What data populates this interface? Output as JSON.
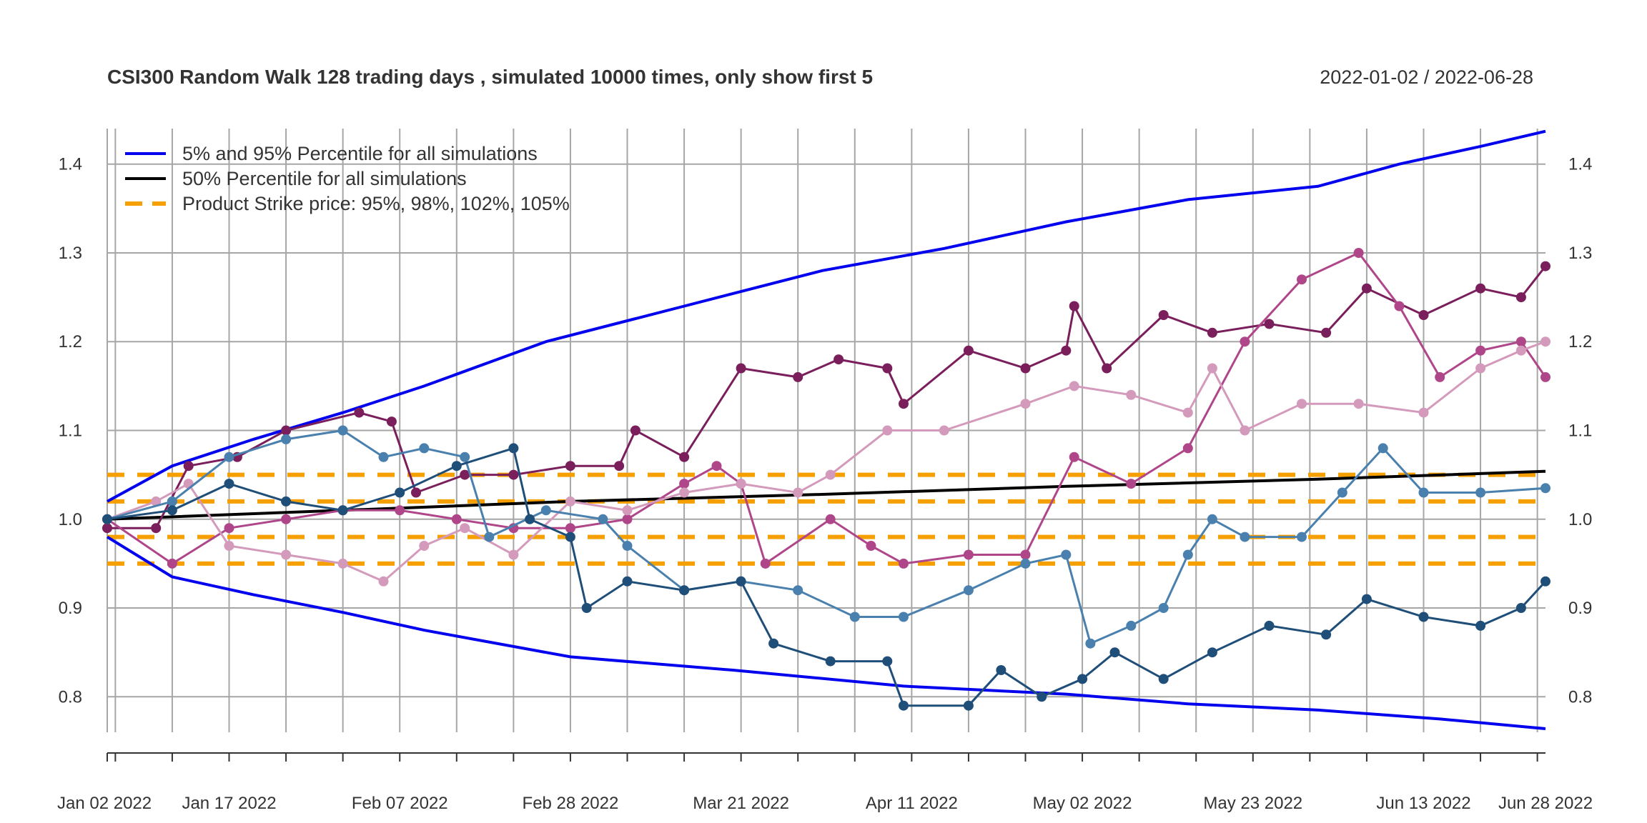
{
  "chart_data": {
    "type": "line",
    "title": "CSI300 Random Walk 128 trading days , simulated 10000 times, only show first 5",
    "date_range": "2022-01-02 / 2022-06-28",
    "ylim": [
      0.76,
      1.44
    ],
    "y_ticks": [
      0.8,
      0.9,
      1.0,
      1.1,
      1.2,
      1.3,
      1.4
    ],
    "y_tick_labels": [
      "0.8",
      "0.9",
      "1.0",
      "1.1",
      "1.2",
      "1.3",
      "1.4"
    ],
    "x_start": "2022-01-02",
    "x_end": "2022-06-28",
    "x_tick_dates": [
      "2022-01-02",
      "2022-01-17",
      "2022-02-07",
      "2022-02-28",
      "2022-03-21",
      "2022-04-11",
      "2022-05-02",
      "2022-05-23",
      "2022-06-13",
      "2022-06-28"
    ],
    "x_tick_labels": [
      "Jan 02 2022",
      "Jan 17 2022",
      "Feb 07 2022",
      "Feb 28 2022",
      "Mar 21 2022",
      "Apr 11 2022",
      "May 02 2022",
      "May 23 2022",
      "Jun 13 2022",
      "Jun 28 2022"
    ],
    "grid_dates": [
      "2022-01-02",
      "2022-01-03",
      "2022-01-10",
      "2022-01-17",
      "2022-01-24",
      "2022-01-31",
      "2022-02-07",
      "2022-02-14",
      "2022-02-21",
      "2022-02-28",
      "2022-03-07",
      "2022-03-14",
      "2022-03-21",
      "2022-03-28",
      "2022-04-04",
      "2022-04-11",
      "2022-04-18",
      "2022-04-25",
      "2022-05-02",
      "2022-05-09",
      "2022-05-16",
      "2022-05-23",
      "2022-05-30",
      "2022-06-06",
      "2022-06-13",
      "2022-06-20",
      "2022-06-27"
    ],
    "grid": true,
    "legend_position": "top-left",
    "legend": [
      {
        "label": "5% and 95% Percentile for all simulations",
        "color": "#0000ee",
        "style": "solid"
      },
      {
        "label": "50% Percentile for all simulations",
        "color": "#000000",
        "style": "solid"
      },
      {
        "label": "Product Strike price: 95%, 98%, 102%, 105%",
        "color": "#f5a000",
        "style": "dashed"
      }
    ],
    "strike_levels": [
      0.95,
      0.98,
      1.02,
      1.05
    ],
    "percentile_lines": [
      {
        "name": "95%",
        "color": "#0000ee",
        "points": [
          [
            "2022-01-02",
            1.02
          ],
          [
            "2022-01-10",
            1.06
          ],
          [
            "2022-01-20",
            1.09
          ],
          [
            "2022-01-31",
            1.12
          ],
          [
            "2022-02-10",
            1.15
          ],
          [
            "2022-02-25",
            1.2
          ],
          [
            "2022-03-14",
            1.24
          ],
          [
            "2022-03-31",
            1.28
          ],
          [
            "2022-04-15",
            1.305
          ],
          [
            "2022-04-30",
            1.335
          ],
          [
            "2022-05-15",
            1.36
          ],
          [
            "2022-05-31",
            1.375
          ],
          [
            "2022-06-10",
            1.4
          ],
          [
            "2022-06-20",
            1.42
          ],
          [
            "2022-06-28",
            1.437
          ]
        ]
      },
      {
        "name": "50%",
        "color": "#000000",
        "points": [
          [
            "2022-01-02",
            1.0
          ],
          [
            "2022-01-31",
            1.01
          ],
          [
            "2022-02-28",
            1.02
          ],
          [
            "2022-03-31",
            1.028
          ],
          [
            "2022-04-30",
            1.037
          ],
          [
            "2022-05-31",
            1.045
          ],
          [
            "2022-06-28",
            1.054
          ]
        ]
      },
      {
        "name": "5%",
        "color": "#0000ee",
        "points": [
          [
            "2022-01-02",
            0.98
          ],
          [
            "2022-01-10",
            0.935
          ],
          [
            "2022-01-20",
            0.915
          ],
          [
            "2022-01-31",
            0.895
          ],
          [
            "2022-02-10",
            0.875
          ],
          [
            "2022-02-28",
            0.845
          ],
          [
            "2022-03-20",
            0.83
          ],
          [
            "2022-04-10",
            0.812
          ],
          [
            "2022-04-30",
            0.803
          ],
          [
            "2022-05-15",
            0.792
          ],
          [
            "2022-05-31",
            0.785
          ],
          [
            "2022-06-15",
            0.775
          ],
          [
            "2022-06-28",
            0.764
          ]
        ]
      }
    ],
    "series": [
      {
        "color": "#7a1e5c",
        "points": [
          [
            "2022-01-02",
            0.99
          ],
          [
            "2022-01-08",
            0.99
          ],
          [
            "2022-01-12",
            1.06
          ],
          [
            "2022-01-18",
            1.07
          ],
          [
            "2022-01-24",
            1.1
          ],
          [
            "2022-02-02",
            1.12
          ],
          [
            "2022-02-06",
            1.11
          ],
          [
            "2022-02-09",
            1.03
          ],
          [
            "2022-02-15",
            1.05
          ],
          [
            "2022-02-21",
            1.05
          ],
          [
            "2022-02-28",
            1.06
          ],
          [
            "2022-03-06",
            1.06
          ],
          [
            "2022-03-08",
            1.1
          ],
          [
            "2022-03-14",
            1.07
          ],
          [
            "2022-03-21",
            1.17
          ],
          [
            "2022-03-28",
            1.16
          ],
          [
            "2022-04-02",
            1.18
          ],
          [
            "2022-04-08",
            1.17
          ],
          [
            "2022-04-10",
            1.13
          ],
          [
            "2022-04-18",
            1.19
          ],
          [
            "2022-04-25",
            1.17
          ],
          [
            "2022-04-30",
            1.19
          ],
          [
            "2022-05-01",
            1.24
          ],
          [
            "2022-05-05",
            1.17
          ],
          [
            "2022-05-12",
            1.23
          ],
          [
            "2022-05-18",
            1.21
          ],
          [
            "2022-05-25",
            1.22
          ],
          [
            "2022-06-01",
            1.21
          ],
          [
            "2022-06-06",
            1.26
          ],
          [
            "2022-06-13",
            1.23
          ],
          [
            "2022-06-20",
            1.26
          ],
          [
            "2022-06-25",
            1.25
          ],
          [
            "2022-06-28",
            1.285
          ]
        ]
      },
      {
        "color": "#b0468a",
        "points": [
          [
            "2022-01-02",
            1.0
          ],
          [
            "2022-01-10",
            0.95
          ],
          [
            "2022-01-17",
            0.99
          ],
          [
            "2022-01-24",
            1.0
          ],
          [
            "2022-01-31",
            1.01
          ],
          [
            "2022-02-07",
            1.01
          ],
          [
            "2022-02-14",
            1.0
          ],
          [
            "2022-02-21",
            0.99
          ],
          [
            "2022-02-28",
            0.99
          ],
          [
            "2022-03-07",
            1.0
          ],
          [
            "2022-03-14",
            1.04
          ],
          [
            "2022-03-18",
            1.06
          ],
          [
            "2022-03-21",
            1.04
          ],
          [
            "2022-03-24",
            0.95
          ],
          [
            "2022-04-01",
            1.0
          ],
          [
            "2022-04-06",
            0.97
          ],
          [
            "2022-04-10",
            0.95
          ],
          [
            "2022-04-18",
            0.96
          ],
          [
            "2022-04-25",
            0.96
          ],
          [
            "2022-05-01",
            1.07
          ],
          [
            "2022-05-08",
            1.04
          ],
          [
            "2022-05-15",
            1.08
          ],
          [
            "2022-05-22",
            1.2
          ],
          [
            "2022-05-29",
            1.27
          ],
          [
            "2022-06-05",
            1.3
          ],
          [
            "2022-06-10",
            1.24
          ],
          [
            "2022-06-15",
            1.16
          ],
          [
            "2022-06-20",
            1.19
          ],
          [
            "2022-06-25",
            1.2
          ],
          [
            "2022-06-28",
            1.16
          ]
        ]
      },
      {
        "color": "#d49abb",
        "points": [
          [
            "2022-01-02",
            1.0
          ],
          [
            "2022-01-08",
            1.02
          ],
          [
            "2022-01-12",
            1.04
          ],
          [
            "2022-01-17",
            0.97
          ],
          [
            "2022-01-24",
            0.96
          ],
          [
            "2022-01-31",
            0.95
          ],
          [
            "2022-02-05",
            0.93
          ],
          [
            "2022-02-10",
            0.97
          ],
          [
            "2022-02-15",
            0.99
          ],
          [
            "2022-02-21",
            0.96
          ],
          [
            "2022-02-28",
            1.02
          ],
          [
            "2022-03-07",
            1.01
          ],
          [
            "2022-03-14",
            1.03
          ],
          [
            "2022-03-21",
            1.04
          ],
          [
            "2022-03-28",
            1.03
          ],
          [
            "2022-04-01",
            1.05
          ],
          [
            "2022-04-08",
            1.1
          ],
          [
            "2022-04-15",
            1.1
          ],
          [
            "2022-04-25",
            1.13
          ],
          [
            "2022-05-01",
            1.15
          ],
          [
            "2022-05-08",
            1.14
          ],
          [
            "2022-05-15",
            1.12
          ],
          [
            "2022-05-18",
            1.17
          ],
          [
            "2022-05-22",
            1.1
          ],
          [
            "2022-05-29",
            1.13
          ],
          [
            "2022-06-05",
            1.13
          ],
          [
            "2022-06-13",
            1.12
          ],
          [
            "2022-06-20",
            1.17
          ],
          [
            "2022-06-25",
            1.19
          ],
          [
            "2022-06-28",
            1.2
          ]
        ]
      },
      {
        "color": "#4a80ae",
        "points": [
          [
            "2022-01-02",
            1.0
          ],
          [
            "2022-01-10",
            1.02
          ],
          [
            "2022-01-17",
            1.07
          ],
          [
            "2022-01-24",
            1.09
          ],
          [
            "2022-01-31",
            1.1
          ],
          [
            "2022-02-05",
            1.07
          ],
          [
            "2022-02-10",
            1.08
          ],
          [
            "2022-02-15",
            1.07
          ],
          [
            "2022-02-18",
            0.98
          ],
          [
            "2022-02-25",
            1.01
          ],
          [
            "2022-03-04",
            1.0
          ],
          [
            "2022-03-07",
            0.97
          ],
          [
            "2022-03-14",
            0.92
          ],
          [
            "2022-03-21",
            0.93
          ],
          [
            "2022-03-28",
            0.92
          ],
          [
            "2022-04-04",
            0.89
          ],
          [
            "2022-04-10",
            0.89
          ],
          [
            "2022-04-18",
            0.92
          ],
          [
            "2022-04-25",
            0.95
          ],
          [
            "2022-04-30",
            0.96
          ],
          [
            "2022-05-03",
            0.86
          ],
          [
            "2022-05-08",
            0.88
          ],
          [
            "2022-05-12",
            0.9
          ],
          [
            "2022-05-15",
            0.96
          ],
          [
            "2022-05-18",
            1.0
          ],
          [
            "2022-05-22",
            0.98
          ],
          [
            "2022-05-29",
            0.98
          ],
          [
            "2022-06-03",
            1.03
          ],
          [
            "2022-06-08",
            1.08
          ],
          [
            "2022-06-13",
            1.03
          ],
          [
            "2022-06-20",
            1.03
          ],
          [
            "2022-06-28",
            1.035
          ]
        ]
      },
      {
        "color": "#1f4e79",
        "points": [
          [
            "2022-01-02",
            1.0
          ],
          [
            "2022-01-10",
            1.01
          ],
          [
            "2022-01-17",
            1.04
          ],
          [
            "2022-01-24",
            1.02
          ],
          [
            "2022-01-31",
            1.01
          ],
          [
            "2022-02-07",
            1.03
          ],
          [
            "2022-02-14",
            1.06
          ],
          [
            "2022-02-21",
            1.08
          ],
          [
            "2022-02-23",
            1.0
          ],
          [
            "2022-02-28",
            0.98
          ],
          [
            "2022-03-02",
            0.9
          ],
          [
            "2022-03-07",
            0.93
          ],
          [
            "2022-03-14",
            0.92
          ],
          [
            "2022-03-21",
            0.93
          ],
          [
            "2022-03-25",
            0.86
          ],
          [
            "2022-04-01",
            0.84
          ],
          [
            "2022-04-08",
            0.84
          ],
          [
            "2022-04-10",
            0.79
          ],
          [
            "2022-04-18",
            0.79
          ],
          [
            "2022-04-22",
            0.83
          ],
          [
            "2022-04-27",
            0.8
          ],
          [
            "2022-05-02",
            0.82
          ],
          [
            "2022-05-06",
            0.85
          ],
          [
            "2022-05-12",
            0.82
          ],
          [
            "2022-05-18",
            0.85
          ],
          [
            "2022-05-25",
            0.88
          ],
          [
            "2022-06-01",
            0.87
          ],
          [
            "2022-06-06",
            0.91
          ],
          [
            "2022-06-13",
            0.89
          ],
          [
            "2022-06-20",
            0.88
          ],
          [
            "2022-06-25",
            0.9
          ],
          [
            "2022-06-28",
            0.93
          ]
        ]
      }
    ]
  }
}
